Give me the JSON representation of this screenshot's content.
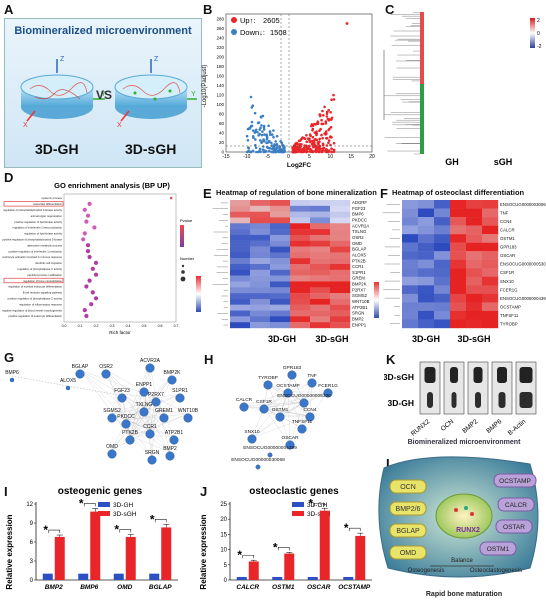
{
  "panels": {
    "A": "A",
    "B": "B",
    "C": "C",
    "D": "D",
    "E": "E",
    "F": "F",
    "G": "G",
    "H": "H",
    "I": "I",
    "J": "J",
    "K": "K",
    "L": "L"
  },
  "panelA": {
    "title": "Biomineralized microenvironment",
    "left": "3D-GH",
    "vs": "VS",
    "right": "3D-sGH",
    "axis_z": "Z",
    "axis_y": "Y",
    "axis_x": "X"
  },
  "panelB": {
    "legend": [
      {
        "label": "Up↑: ",
        "count": "2605",
        "color": "#e8262a"
      },
      {
        "label": "Down↓: ",
        "count": "1508",
        "color": "#3b7fc4"
      }
    ],
    "ylabel": "-Log10(Padjust)",
    "xlabel": "Log2FC",
    "xticks": [
      "-15",
      "-10",
      "-5",
      "0",
      "5",
      "10",
      "15",
      "20"
    ],
    "yticks": [
      "0",
      "20",
      "40",
      "60",
      "80",
      "100",
      "120",
      "140",
      "160",
      "180",
      "200",
      "220",
      "240",
      "260",
      "280"
    ]
  },
  "panelC": {
    "cols": [
      "GH",
      "sGH"
    ],
    "scale": [
      "2",
      "0",
      "-2"
    ]
  },
  "panelD": {
    "title": "GO enrichment analysis (BP UP)",
    "xlabel": "Rich factor",
    "xticks": [
      "0.0",
      "0.1",
      "0.2",
      "0.3",
      "0.4",
      "0.5",
      "0.6",
      "0.7"
    ],
    "legend_pvalue": "Pvalue",
    "legend_number": "Number",
    "terms": [
      "systemic process",
      "osteoclast differentiation",
      "regulation of phosphatidylinositol 3-kinase activity",
      "animal organ regeneration",
      "positive regulation of lipid kinase activity",
      "regulation of interleukin-1 beta production",
      "regulation of lipid kinase activity",
      "positive regulation of phosphatidylinositol 3-kinase",
      "adenosine metabolic process",
      "positive regulation of interleukin-1 production",
      "lymphocyte activation involved in immune response",
      "dendritic cell migration",
      "regulation of phospholipase C activity",
      "peptidyl-tyrosine modification",
      "regulation of bone mineralization",
      "regulation of myeloid leukocyte differentiation",
      "B cell receptor signaling pathway",
      "positive regulation of phospholipase C activity",
      "regulation of inflammatory response",
      "negative regulation of blood vessel morphogenesis",
      "positive regulation of leukocyte differentiation"
    ],
    "richfactor": [
      0.67,
      0.16,
      0.13,
      0.15,
      0.14,
      0.19,
      0.13,
      0.12,
      0.15,
      0.15,
      0.16,
      0.2,
      0.18,
      0.2,
      0.16,
      0.14,
      0.18,
      0.2,
      0.17,
      0.13,
      0.14
    ],
    "boxed": [
      1,
      14
    ]
  },
  "panelE": {
    "title": "Heatmap of regulation of bone mineralization",
    "genes": [
      "ADGRF",
      "FGF23",
      "BMP6",
      "PKDCC",
      "ACVR2A",
      "TXLNG",
      "OSR2",
      "OMD",
      "BGLAP",
      "ALOX5",
      "PTK2B",
      "CCR1",
      "S1PR1",
      "GREM",
      "BMP2K",
      "P2RX7",
      "SGMS2",
      "WNT10B",
      "ATP2B1",
      "SRGN",
      "BMP2",
      "ENPP1"
    ],
    "cols": [
      "3D-GH",
      "3D-sGH"
    ],
    "scale": [
      "1.5",
      "1",
      "0.5",
      "0",
      "-0.5",
      "-1",
      "-1.5"
    ]
  },
  "panelF": {
    "title": "Heatmap of osteoclast differentiation",
    "genes": [
      "ENSOCUG00000030068",
      "TNF",
      "CCN4",
      "CALCR",
      "OSTM1",
      "GPR183",
      "OSCAR",
      "ENSOCUG00000005306",
      "CSF1R",
      "SNX10",
      "FCER1G",
      "ENSOCUG00000004399",
      "OCSTAMP",
      "TNFSF11",
      "TYROBP"
    ],
    "cols": [
      "3D-GH",
      "3D-sGH"
    ],
    "scale": [
      "1.5",
      "1",
      "0.5",
      "0",
      "-0.5",
      "-1",
      "-1.5"
    ]
  },
  "panelG": {
    "nodes": [
      "BMP6",
      "ALOX5",
      "BGLAP",
      "OSR2",
      "ACVR2A",
      "BMP2K",
      "FGF23",
      "ENPP1",
      "P2RX7",
      "S1PR1",
      "SGMS2",
      "TXLNG",
      "GREM1",
      "WNT10B",
      "PKDCC",
      "CCR1",
      "PTK2B",
      "ATP2B1",
      "OMD",
      "BMP2",
      "SRGN"
    ]
  },
  "panelH": {
    "nodes": [
      "GPR183",
      "TNF",
      "TYROBP",
      "OCSTAMP",
      "FCER1G",
      "ENSOCUG00000005306",
      "CALCR",
      "CSF1R",
      "OSTM1",
      "CCN4",
      "TNFSF11",
      "SNX10",
      "OSCAR",
      "ENSOCUG00000004399",
      "ENSOCUG00000030068"
    ]
  },
  "panelI": {
    "title": "osteogenic genes",
    "ylabel": "Relative expression",
    "legend": [
      "3D-GH",
      "3D-sGH"
    ],
    "star": "*",
    "yticks": [
      "0",
      "3",
      "6",
      "9",
      "12"
    ],
    "chart_data": {
      "type": "bar",
      "categories": [
        "BMP2",
        "BMP6",
        "OMD",
        "BGLAP"
      ],
      "ylim": [
        0,
        12
      ],
      "series": [
        {
          "name": "3D-GH",
          "values": [
            1.0,
            1.0,
            1.0,
            1.0
          ]
        },
        {
          "name": "3D-sGH",
          "values": [
            6.8,
            10.8,
            6.8,
            8.3
          ]
        }
      ],
      "errors": [
        [
          0.1,
          0.1,
          0.1,
          0.1
        ],
        [
          0.3,
          0.5,
          0.4,
          0.5
        ]
      ]
    }
  },
  "panelJ": {
    "title": "osteoclastic genes",
    "ylabel": "Relative expression",
    "legend": [
      "3D-GH",
      "3D-sGH"
    ],
    "star": "*",
    "yticks": [
      "0",
      "5",
      "10",
      "15",
      "20",
      "25"
    ],
    "chart_data": {
      "type": "bar",
      "categories": [
        "CALCR",
        "OSTM1",
        "OSCAR",
        "OCSTAMP"
      ],
      "ylim": [
        0,
        25
      ],
      "series": [
        {
          "name": "3D-GH",
          "values": [
            1.0,
            1.0,
            1.0,
            1.0
          ]
        },
        {
          "name": "3D-sGH",
          "values": [
            6.1,
            8.7,
            22.8,
            14.5
          ]
        }
      ],
      "errors": [
        [
          0.1,
          0.1,
          0.1,
          0.1
        ],
        [
          0.4,
          0.4,
          0.8,
          0.9
        ]
      ]
    }
  },
  "panelK": {
    "rows": [
      "3D-sGH",
      "3D-GH"
    ],
    "cols": [
      "RUNX2",
      "OCN",
      "BMP2",
      "BMP6",
      "B-Actin"
    ]
  },
  "panelL": {
    "title": "Biomineralized microenvironment",
    "left": [
      "OCN",
      "BMP2/6",
      "BGLAP",
      "OMD"
    ],
    "right": [
      "OCSTAMP",
      "CALCR",
      "OSTAR",
      "OSTM1"
    ],
    "center": "RUNX2",
    "balance": "Balance",
    "osteogenesis": "Osteogenesis",
    "osteoclastogenesis": "Osteoclastogenesis",
    "caption": "Rapid bone maturation"
  }
}
